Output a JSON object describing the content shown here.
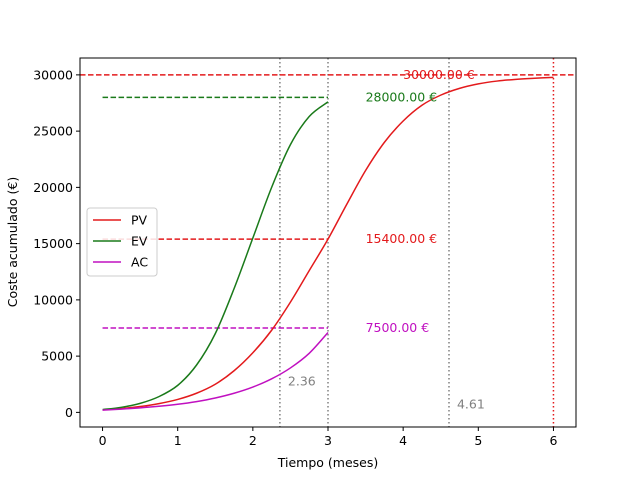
{
  "chart_data": {
    "type": "line",
    "title": "",
    "xlabel": "Tiempo (meses)",
    "ylabel": "Coste acumulado (€)",
    "xlim": [
      -0.3,
      6.3
    ],
    "ylim": [
      -1300,
      31500
    ],
    "xticks": [
      0,
      1,
      2,
      3,
      4,
      5,
      6
    ],
    "xtick_labels": [
      "0",
      "1",
      "2",
      "3",
      "4",
      "5",
      "6"
    ],
    "yticks": [
      0,
      5000,
      10000,
      15000,
      20000,
      25000,
      30000
    ],
    "ytick_labels": [
      "0",
      "5000",
      "10000",
      "15000",
      "20000",
      "25000",
      "30000"
    ],
    "grid": false,
    "legend_position": "center-left",
    "series": [
      {
        "name": "PV",
        "color": "#e31a1c",
        "x": [
          0,
          0.25,
          0.5,
          0.75,
          1,
          1.25,
          1.5,
          1.75,
          2,
          2.25,
          2.5,
          2.75,
          3,
          3.25,
          3.5,
          3.75,
          4,
          4.25,
          4.5,
          4.75,
          5,
          5.25,
          5.5,
          5.75,
          6
        ],
        "values": [
          220,
          340,
          520,
          780,
          1150,
          1700,
          2500,
          3700,
          5300,
          7300,
          9800,
          12600,
          15400,
          18500,
          21500,
          24000,
          25900,
          27300,
          28200,
          28800,
          29200,
          29450,
          29600,
          29700,
          29780
        ]
      },
      {
        "name": "EV",
        "color": "#1a7a1a",
        "x": [
          0,
          0.25,
          0.5,
          0.75,
          1,
          1.25,
          1.5,
          1.75,
          2,
          2.25,
          2.5,
          2.75,
          3
        ],
        "values": [
          250,
          450,
          800,
          1400,
          2400,
          4200,
          7000,
          11000,
          15500,
          20000,
          23800,
          26300,
          27600
        ]
      },
      {
        "name": "AC",
        "color": "#c010c0",
        "x": [
          0,
          0.25,
          0.5,
          0.75,
          1,
          1.25,
          1.5,
          1.75,
          2,
          2.25,
          2.5,
          2.75,
          3
        ],
        "values": [
          200,
          290,
          400,
          540,
          720,
          960,
          1280,
          1700,
          2250,
          2980,
          3950,
          5250,
          7100
        ]
      }
    ],
    "hlines": [
      {
        "y": 30000,
        "x_from": -0.3,
        "x_to": 6.3,
        "color": "#e31a1c",
        "label": "30000.00 €",
        "label_x": 4.0
      },
      {
        "y": 28000,
        "x_from": 0,
        "x_to": 3,
        "color": "#1a7a1a",
        "label": "28000.00 €",
        "label_x": 3.5
      },
      {
        "y": 15400,
        "x_from": 0,
        "x_to": 3,
        "color": "#e31a1c",
        "label": "15400.00 €",
        "label_x": 3.5
      },
      {
        "y": 7500,
        "x_from": 0,
        "x_to": 3,
        "color": "#c010c0",
        "label": "7500.00 €",
        "label_x": 3.5
      }
    ],
    "vlines": [
      {
        "x": 2.36,
        "color": "#808080",
        "label": "2.36",
        "label_y": 2400
      },
      {
        "x": 3.0,
        "color": "#808080",
        "label": "",
        "label_y": 0
      },
      {
        "x": 4.61,
        "color": "#808080",
        "label": "4.61",
        "label_y": 350
      },
      {
        "x": 6.0,
        "color": "#e31a1c",
        "label": "",
        "label_y": 0
      }
    ]
  }
}
